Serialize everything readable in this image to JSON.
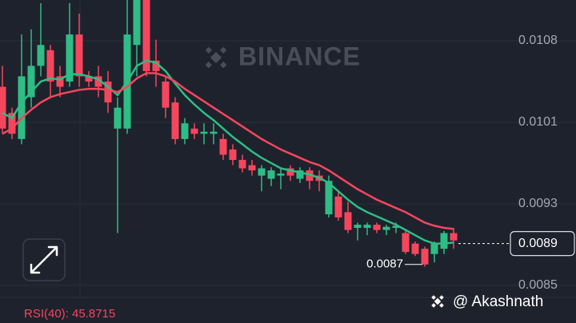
{
  "chart_data": {
    "type": "candlestick",
    "watermark": "BINANCE",
    "credit": "@ Akashnath",
    "indicator": "RSI(40): 45.8715",
    "up_color": "#2ebd85",
    "down_color": "#f6465d",
    "ylim": [
      0.0084,
      0.01123
    ],
    "yticks": [
      0.0085,
      {
        "value": 0.00928,
        "label": "0.0093"
      },
      {
        "value": 0.01006,
        "label": "0.0101"
      },
      {
        "value": 0.01084,
        "label": "0.0108"
      }
    ],
    "grid": true,
    "last_price": 0.0089,
    "low_price": 0.0087,
    "open": [
      0.0104,
      0.01015,
      0.0099,
      0.0103,
      0.0106,
      0.01075,
      0.0105,
      0.01045,
      0.0109,
      0.0105,
      0.0105,
      0.01045,
      0.01,
      0.01,
      0.0108,
      0.01123,
      0.01065,
      0.01045,
      0.01025,
      0.0099,
      0.01,
      0.00995,
      0.00995,
      0.0099,
      0.0098,
      0.0097,
      0.00965,
      0.00955,
      0.00952,
      0.00955,
      0.00962,
      0.00952,
      0.0096,
      0.00955,
      0.00918,
      0.00935,
      0.0092,
      0.00905,
      0.00905,
      0.00908,
      0.00903,
      0.00905,
      0.009,
      0.0089,
      0.00885,
      0.0088,
      0.00885,
      0.009
    ],
    "high": [
      0.0106,
      0.0102,
      0.0109,
      0.01095,
      0.0112,
      0.0108,
      0.0106,
      0.0112,
      0.0111,
      0.01055,
      0.0106,
      0.01055,
      0.0103,
      0.01123,
      0.01123,
      0.01123,
      0.01085,
      0.0105,
      0.0103,
      0.0101,
      0.01005,
      0.01005,
      0.01005,
      0.00995,
      0.00985,
      0.00975,
      0.0097,
      0.00965,
      0.00963,
      0.00962,
      0.00965,
      0.00963,
      0.00963,
      0.0096,
      0.00955,
      0.0094,
      0.0093,
      0.0091,
      0.0091,
      0.0091,
      0.00908,
      0.0091,
      0.00902,
      0.00892,
      0.00887,
      0.00892,
      0.00902,
      0.00905
    ],
    "low": [
      0.00995,
      0.0099,
      0.00985,
      0.0102,
      0.0105,
      0.0103,
      0.0103,
      0.0104,
      0.0104,
      0.0104,
      0.0103,
      0.01015,
      0.009,
      0.00995,
      0.0105,
      0.0105,
      0.0104,
      0.0101,
      0.00985,
      0.00985,
      0.0099,
      0.00985,
      0.00985,
      0.0097,
      0.00965,
      0.00958,
      0.00955,
      0.0094,
      0.00945,
      0.00942,
      0.0095,
      0.00948,
      0.00942,
      0.0094,
      0.00915,
      0.00912,
      0.009,
      0.00893,
      0.00898,
      0.009,
      0.00898,
      0.009,
      0.0088,
      0.00878,
      0.00868,
      0.00872,
      0.0088,
      0.00885
    ],
    "close": [
      0.01,
      0.00995,
      0.0105,
      0.0106,
      0.0108,
      0.01045,
      0.0104,
      0.0109,
      0.0105,
      0.01045,
      0.0104,
      0.01025,
      0.0102,
      0.0109,
      0.01123,
      0.01055,
      0.01055,
      0.0102,
      0.0099,
      0.01005,
      0.00995,
      0.00997,
      0.00997,
      0.00975,
      0.0097,
      0.00962,
      0.0096,
      0.00962,
      0.0096,
      0.00957,
      0.00955,
      0.0096,
      0.0095,
      0.0095,
      0.0095,
      0.00915,
      0.00903,
      0.00908,
      0.00908,
      0.00903,
      0.00906,
      0.00907,
      0.00882,
      0.0088,
      0.0087,
      0.0089,
      0.009,
      0.00893
    ],
    "ma_lines": [
      {
        "color": "#2ebd85",
        "values": [
          0.01015,
          0.0101,
          0.01025,
          0.01035,
          0.01045,
          0.01048,
          0.01047,
          0.01052,
          0.01052,
          0.0105,
          0.01047,
          0.0104,
          0.01032,
          0.01045,
          0.0106,
          0.01065,
          0.01063,
          0.01055,
          0.01043,
          0.01032,
          0.01023,
          0.01015,
          0.01008,
          0.01,
          0.00992,
          0.00985,
          0.00978,
          0.00972,
          0.00967,
          0.00962,
          0.0096,
          0.00958,
          0.00956,
          0.00953,
          0.00948,
          0.0094,
          0.00932,
          0.00925,
          0.0092,
          0.00916,
          0.00912,
          0.00908,
          0.00903,
          0.00898,
          0.00893,
          0.0089,
          0.0089,
          0.00891
        ]
      },
      {
        "color": "#f6465d",
        "values": [
          0.00995,
          0.01,
          0.0101,
          0.01018,
          0.01025,
          0.0103,
          0.01033,
          0.01035,
          0.01037,
          0.01038,
          0.01038,
          0.01037,
          0.01035,
          0.0104,
          0.01048,
          0.01053,
          0.01053,
          0.0105,
          0.01045,
          0.01038,
          0.01032,
          0.01026,
          0.0102,
          0.01014,
          0.01008,
          0.01002,
          0.00996,
          0.0099,
          0.00985,
          0.0098,
          0.00976,
          0.00972,
          0.00968,
          0.00965,
          0.0096,
          0.00954,
          0.00948,
          0.00942,
          0.00937,
          0.00932,
          0.00928,
          0.00924,
          0.0092,
          0.00915,
          0.0091,
          0.00907,
          0.00905,
          0.00904
        ]
      }
    ]
  }
}
